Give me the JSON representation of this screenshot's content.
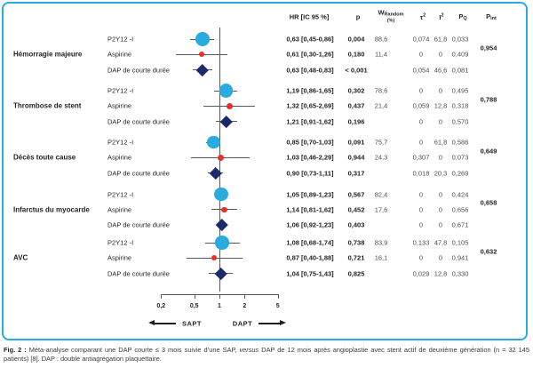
{
  "table_header": {
    "hr": "HR [IC 95 %]",
    "p": "p",
    "w_main": "W",
    "w_sub": "Random",
    "w_sub2": "(%)",
    "tau2": "τ",
    "tau2_sup": "2",
    "i2": "I",
    "i2_sup": "2",
    "pq_main": "P",
    "pq_sub": "Q",
    "pint_main": "P",
    "pint_sub": "int"
  },
  "chart_data": {
    "type": "forest",
    "x_axis": {
      "scale": "log",
      "ref_line": 1,
      "ticks": [
        {
          "value": 0.2,
          "label": "0,2"
        },
        {
          "value": 0.5,
          "label": "0,5"
        },
        {
          "value": 1,
          "label": "1"
        },
        {
          "value": 2,
          "label": "2"
        },
        {
          "value": 5,
          "label": "5"
        }
      ],
      "left_label": "SAPT",
      "right_label": "DAPT"
    },
    "columns": [
      "HR [IC 95 %]",
      "p",
      "W Random (%)",
      "τ²",
      "I²",
      "P Q",
      "P int"
    ],
    "groups": [
      {
        "outcome": "Hémorragie majeure",
        "p_int": "0,954",
        "rows": [
          {
            "label": "P2Y12 -I",
            "marker": "circle",
            "hr": 0.63,
            "lo": 0.45,
            "hi": 0.86,
            "hr_text": "0,63 [0,45-0,86]",
            "p": "0,004",
            "w": "88,6",
            "w_num": 88.6,
            "tau2": "0,074",
            "i2": "61,8",
            "pq": "0,033"
          },
          {
            "label": "Aspirine",
            "marker": "dot",
            "hr": 0.61,
            "lo": 0.3,
            "hi": 1.26,
            "hr_text": "0,61 [0,30-1,26]",
            "p": "0,180",
            "w": "11,4",
            "w_num": 11.4,
            "tau2": "0",
            "i2": "0",
            "pq": "0,409"
          },
          {
            "label": "DAP de courte durée",
            "marker": "diamond",
            "hr": 0.63,
            "lo": 0.48,
            "hi": 0.83,
            "hr_text": "0,63 [0,48-0,83]",
            "p": "< 0,001",
            "w": "",
            "w_num": 0,
            "tau2": "0,054",
            "i2": "46,6",
            "pq": "0,081"
          }
        ]
      },
      {
        "outcome": "Thrombose de stent",
        "p_int": "0,788",
        "rows": [
          {
            "label": "P2Y12 -I",
            "marker": "circle",
            "hr": 1.19,
            "lo": 0.86,
            "hi": 1.65,
            "hr_text": "1,19 [0,86-1,65]",
            "p": "0,302",
            "w": "78,6",
            "w_num": 78.6,
            "tau2": "0",
            "i2": "0",
            "pq": "0,495"
          },
          {
            "label": "Aspirine",
            "marker": "dot",
            "hr": 1.32,
            "lo": 0.65,
            "hi": 2.69,
            "hr_text": "1,32 [0,65-2,69]",
            "p": "0,437",
            "w": "21,4",
            "w_num": 21.4,
            "tau2": "0,059",
            "i2": "12,8",
            "pq": "0,318"
          },
          {
            "label": "DAP de courte durée",
            "marker": "diamond",
            "hr": 1.21,
            "lo": 0.91,
            "hi": 1.62,
            "hr_text": "1,21 [0,91-1,62]",
            "p": "0,196",
            "w": "",
            "w_num": 0,
            "tau2": "0",
            "i2": "0",
            "pq": "0,570"
          }
        ]
      },
      {
        "outcome": "Décès toute cause",
        "p_int": "0,649",
        "rows": [
          {
            "label": "P2Y12 -I",
            "marker": "circle",
            "hr": 0.85,
            "lo": 0.7,
            "hi": 1.03,
            "hr_text": "0,85 [0,70-1,03]",
            "p": "0,091",
            "w": "75,7",
            "w_num": 75.7,
            "tau2": "0",
            "i2": "61,8",
            "pq": "0,586"
          },
          {
            "label": "Aspirine",
            "marker": "dot",
            "hr": 1.03,
            "lo": 0.46,
            "hi": 2.29,
            "hr_text": "1,03 [0,46-2,29]",
            "p": "0,944",
            "w": "24,3",
            "w_num": 24.3,
            "tau2": "0,307",
            "i2": "0",
            "pq": "0,073"
          },
          {
            "label": "DAP de courte durée",
            "marker": "diamond",
            "hr": 0.9,
            "lo": 0.73,
            "hi": 1.11,
            "hr_text": "0,90 [0,73-1,11]",
            "p": "0,317",
            "w": "",
            "w_num": 0,
            "tau2": "0,018",
            "i2": "20,3",
            "pq": "0,269"
          }
        ]
      },
      {
        "outcome": "Infarctus du myocarde",
        "p_int": "0,658",
        "rows": [
          {
            "label": "P2Y12 -I",
            "marker": "circle",
            "hr": 1.05,
            "lo": 0.89,
            "hi": 1.23,
            "hr_text": "1,05 [0,89-1,23]",
            "p": "0,567",
            "w": "82,4",
            "w_num": 82.4,
            "tau2": "0",
            "i2": "0",
            "pq": "0,424"
          },
          {
            "label": "Aspirine",
            "marker": "dot",
            "hr": 1.14,
            "lo": 0.81,
            "hi": 1.62,
            "hr_text": "1,14 [0,81-1,62]",
            "p": "0,452",
            "w": "17,6",
            "w_num": 17.6,
            "tau2": "0",
            "i2": "0",
            "pq": "0,656"
          },
          {
            "label": "DAP de courte durée",
            "marker": "diamond",
            "hr": 1.06,
            "lo": 0.92,
            "hi": 1.23,
            "hr_text": "1,06 [0,92-1,23]",
            "p": "0,403",
            "w": "",
            "w_num": 0,
            "tau2": "0",
            "i2": "0",
            "pq": "0,671"
          }
        ]
      },
      {
        "outcome": "AVC",
        "p_int": "0,632",
        "rows": [
          {
            "label": "P2Y12 -I",
            "marker": "circle",
            "hr": 1.08,
            "lo": 0.68,
            "hi": 1.74,
            "hr_text": "1,08 [0,68-1,74]",
            "p": "0,738",
            "w": "83,9",
            "w_num": 83.9,
            "tau2": "0,133",
            "i2": "47,8",
            "pq": "0,105"
          },
          {
            "label": "Aspirine",
            "marker": "dot",
            "hr": 0.87,
            "lo": 0.4,
            "hi": 1.88,
            "hr_text": "0,87 [0,40-1,88]",
            "p": "0,721",
            "w": "16,1",
            "w_num": 16.1,
            "tau2": "0",
            "i2": "0",
            "pq": "0,941"
          },
          {
            "label": "DAP de courte durée",
            "marker": "diamond",
            "hr": 1.04,
            "lo": 0.75,
            "hi": 1.43,
            "hr_text": "1,04 [0,75-1,43]",
            "p": "0,825",
            "w": "",
            "w_num": 0,
            "tau2": "0,029",
            "i2": "12,8",
            "pq": "0,330"
          }
        ]
      }
    ]
  },
  "caption": {
    "label": "Fig. 2 :",
    "part1": " Méta-analyse comparant une DAP courte ≤ 3 mois suivie d’une SAP, ",
    "versus": "versus",
    "part2": " DAP de 12 mois après angioplastie avec stent actif de deuxième génération (n = 32 145 patients) [8]. DAP : double antiagrégation plaquettaire."
  },
  "colors": {
    "accent_blue": "#29ABE2",
    "marker_circle": "#29ABE2",
    "marker_dot": "#E6332A",
    "marker_diamond": "#1B2A6B",
    "line_gray": "#58595B"
  }
}
